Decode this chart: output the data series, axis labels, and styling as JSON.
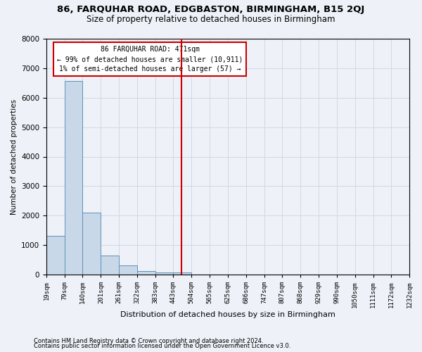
{
  "title1": "86, FARQUHAR ROAD, EDGBASTON, BIRMINGHAM, B15 2QJ",
  "title2": "Size of property relative to detached houses in Birmingham",
  "xlabel": "Distribution of detached houses by size in Birmingham",
  "ylabel": "Number of detached properties",
  "footnote1": "Contains HM Land Registry data © Crown copyright and database right 2024.",
  "footnote2": "Contains public sector information licensed under the Open Government Licence v3.0.",
  "annotation_line1": "86 FARQUHAR ROAD: 471sqm",
  "annotation_line2": "← 99% of detached houses are smaller (10,911)",
  "annotation_line3": "1% of semi-detached houses are larger (57) →",
  "bar_left_edges": [
    19,
    79,
    140,
    201,
    261,
    322,
    383,
    443,
    504,
    565,
    625,
    686,
    747,
    807,
    868,
    929,
    990,
    1050,
    1111,
    1172
  ],
  "bar_widths": [
    60,
    61,
    61,
    60,
    61,
    61,
    60,
    61,
    61,
    60,
    61,
    61,
    60,
    61,
    61,
    61,
    60,
    61,
    61,
    60
  ],
  "bar_heights": [
    1320,
    6560,
    2100,
    650,
    300,
    120,
    80,
    60,
    0,
    0,
    0,
    0,
    0,
    0,
    0,
    0,
    0,
    0,
    0,
    0
  ],
  "bar_color": "#c8d8e8",
  "bar_edge_color": "#6090b8",
  "x_tick_labels": [
    "19sqm",
    "79sqm",
    "140sqm",
    "201sqm",
    "261sqm",
    "322sqm",
    "383sqm",
    "443sqm",
    "504sqm",
    "565sqm",
    "625sqm",
    "686sqm",
    "747sqm",
    "807sqm",
    "868sqm",
    "929sqm",
    "990sqm",
    "1050sqm",
    "1111sqm",
    "1172sqm",
    "1232sqm"
  ],
  "ylim": [
    0,
    8000
  ],
  "yticks": [
    0,
    1000,
    2000,
    3000,
    4000,
    5000,
    6000,
    7000,
    8000
  ],
  "property_line_x": 471,
  "property_line_color": "#cc0000",
  "annotation_box_color": "#cc0000",
  "grid_color": "#d0d8e8",
  "background_color": "#eef2f8",
  "title1_fontsize": 9.5,
  "title2_fontsize": 8.5
}
